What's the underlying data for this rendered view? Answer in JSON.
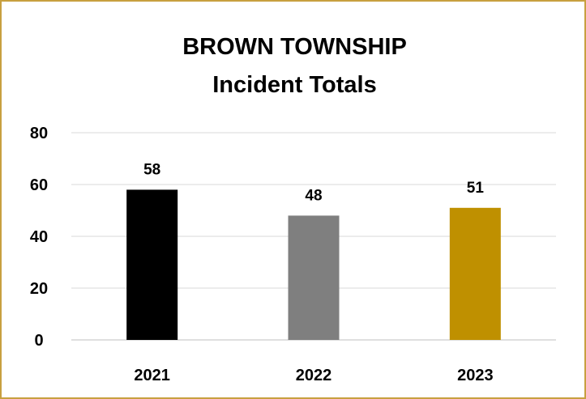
{
  "chart_data": {
    "type": "bar",
    "title": "BROWN TOWNSHIP",
    "subtitle": "Incident Totals",
    "categories": [
      "2021",
      "2022",
      "2023"
    ],
    "values": [
      58,
      48,
      51
    ],
    "bar_colors": [
      "#000000",
      "#7f7f7f",
      "#bf9000"
    ],
    "data_labels": [
      "58",
      "48",
      "51"
    ],
    "ylim": [
      0,
      80
    ],
    "yticks": [
      "0",
      "20",
      "40",
      "60",
      "80"
    ],
    "grid": true,
    "legend": "none",
    "border_color": "#c8a040"
  }
}
